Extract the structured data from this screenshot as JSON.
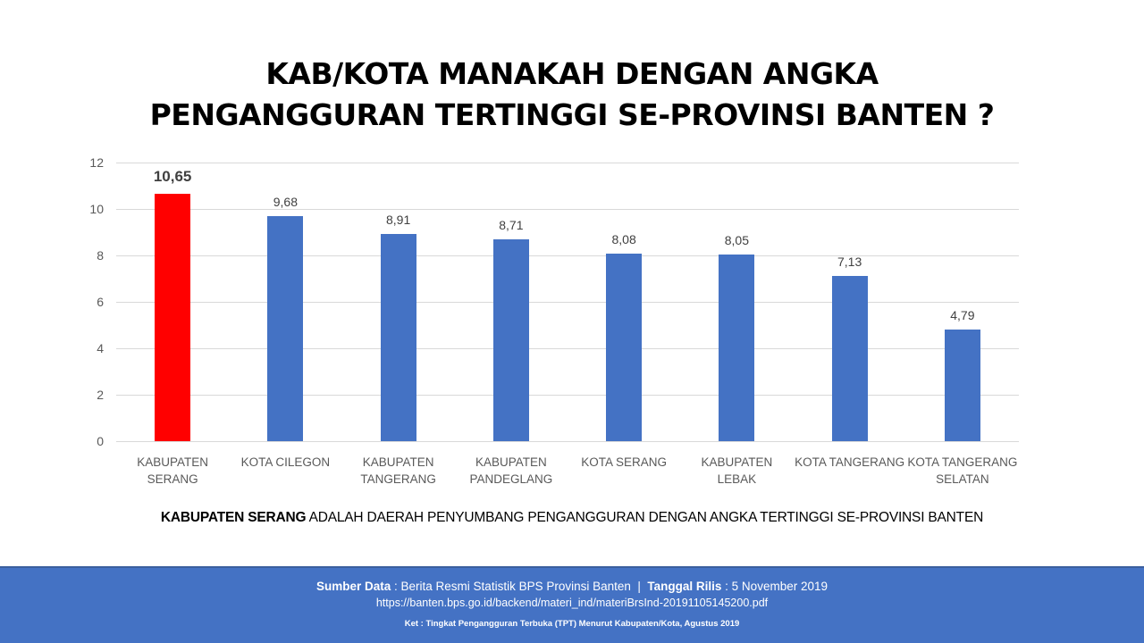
{
  "slide": {
    "title_lines": [
      "KAB/KOTA MANAKAH DENGAN ANGKA",
      "PENGANGGURAN TERTINGGI SE-PROVINSI BANTEN ?"
    ],
    "caption_bold": "KABUPATEN SERANG",
    "caption_rest": " ADALAH DAERAH PENYUMBANG PENGANGGURAN DENGAN ANGKA TERTINGGI SE-PROVINSI BANTEN"
  },
  "footer": {
    "source_label": "Sumber Data",
    "source_value": " : Berita Resmi Statistik BPS Provinsi Banten  |  ",
    "release_label": "Tanggal Rilis",
    "release_value": " : 5 November 2019",
    "url": "https://banten.bps.go.id/backend/materi_ind/materiBrsInd-20191105145200.pdf",
    "note": "Ket : Tingkat Pengangguran Terbuka (TPT) Menurut Kabupaten/Kota, Agustus 2019"
  },
  "colors": {
    "highlight": "#ff0000",
    "bar": "#4472c4",
    "footer_bg": "#4472c4"
  },
  "chart_data": {
    "type": "bar",
    "title": "KAB/KOTA MANAKAH DENGAN ANGKA PENGANGGURAN TERTINGGI SE-PROVINSI BANTEN ?",
    "categories": [
      "KABUPATEN SERANG",
      "KOTA CILEGON",
      "KABUPATEN TANGERANG",
      "KABUPATEN PANDEGLANG",
      "KOTA SERANG",
      "KABUPATEN LEBAK",
      "KOTA TANGERANG",
      "KOTA TANGERANG SELATAN"
    ],
    "category_labels": [
      "KABUPATEN\nSERANG",
      "KOTA CILEGON",
      "KABUPATEN\nTANGERANG",
      "KABUPATEN\nPANDEGLANG",
      "KOTA SERANG",
      "KABUPATEN LEBAK",
      "KOTA TANGERANG",
      "KOTA TANGERANG\nSELATAN"
    ],
    "values": [
      10.65,
      9.68,
      8.91,
      8.71,
      8.08,
      8.05,
      7.13,
      4.79
    ],
    "value_labels": [
      "10,65",
      "9,68",
      "8,91",
      "8,71",
      "8,08",
      "8,05",
      "7,13",
      "4,79"
    ],
    "highlight_index": 0,
    "xlabel": "",
    "ylabel": "",
    "ylim": [
      0,
      12
    ],
    "yticks": [
      0,
      2,
      4,
      6,
      8,
      10,
      12
    ],
    "grid": true,
    "legend": "none"
  }
}
